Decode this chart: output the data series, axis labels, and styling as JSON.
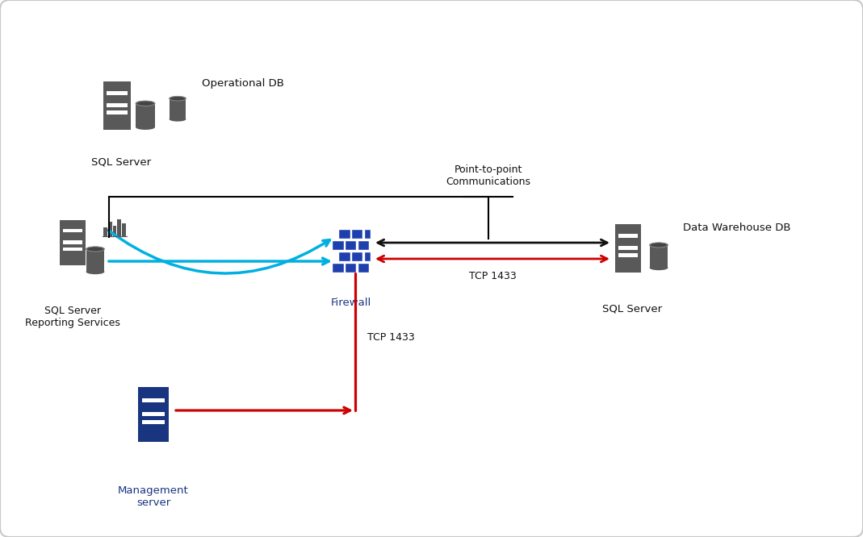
{
  "background_color": "#ffffff",
  "border_color": "#c8c8c8",
  "icon_color_dark": "#595959",
  "icon_color_blue": "#1a3580",
  "firewall_color": "#1e3fad",
  "arrow_black": "#111111",
  "arrow_blue": "#00b0e0",
  "arrow_red": "#cc0000",
  "text_color": "#111111",
  "text_color_blue": "#1a3580",
  "labels": {
    "sql_server_top": "SQL Server",
    "operational_db": "Operational DB",
    "sql_server_reporting": "SQL Server\nReporting Services",
    "firewall": "Firewall",
    "point_to_point": "Point-to-point\nCommunications",
    "tcp_1433_horiz": "TCP 1433",
    "tcp_1433_vert": "TCP 1433",
    "data_warehouse_db": "Data Warehouse DB",
    "sql_server_right": "SQL Server",
    "management_server": "Management\nserver"
  }
}
